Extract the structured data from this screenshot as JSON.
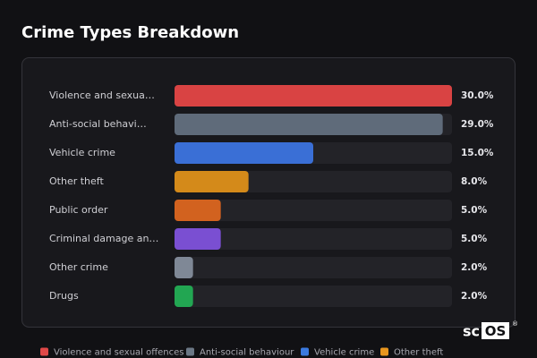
{
  "chart_data": {
    "type": "bar",
    "orientation": "horizontal",
    "title": "Crime Types Breakdown",
    "categories": [
      "Violence and sexua…",
      "Anti-social behavi…",
      "Vehicle crime",
      "Other theft",
      "Public order",
      "Criminal damage an…",
      "Other crime",
      "Drugs"
    ],
    "values": [
      30,
      29,
      15,
      8,
      5,
      5,
      2,
      2
    ],
    "value_labels": [
      "30.0%",
      "29.0%",
      "15.0%",
      "8.0%",
      "5.0%",
      "5.0%",
      "2.0%",
      "2.0%"
    ],
    "colors": [
      "#d94343",
      "#5f6b7a",
      "#3a6fd6",
      "#d48a1a",
      "#d2621f",
      "#7a4fd2",
      "#7f8896",
      "#22a652"
    ],
    "xlim": [
      0,
      30
    ],
    "legend": [
      {
        "name": "Violence and sexual offences",
        "color": "#e04848"
      },
      {
        "name": "Anti-social behaviour",
        "color": "#6b7785"
      },
      {
        "name": "Vehicle crime",
        "color": "#3b7ae0"
      },
      {
        "name": "Other theft",
        "color": "#e8961e"
      }
    ]
  },
  "logo": {
    "prefix": "sc",
    "boxed": "OS",
    "mark": "®"
  }
}
